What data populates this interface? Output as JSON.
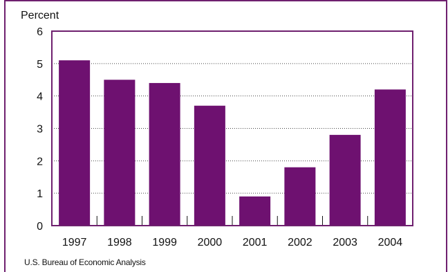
{
  "chart_data": {
    "type": "bar",
    "ylabel": "Percent",
    "categories": [
      "1997",
      "1998",
      "1999",
      "2000",
      "2001",
      "2002",
      "2003",
      "2004"
    ],
    "values": [
      5.1,
      4.5,
      4.4,
      3.7,
      0.9,
      1.8,
      2.8,
      4.2
    ],
    "ylim": [
      0,
      6
    ],
    "yticks": [
      0,
      1,
      2,
      3,
      4,
      5,
      6
    ],
    "grid": "horizontal dotted",
    "bar_color": "#6e1170"
  },
  "source": "U.S. Bureau of Economic Analysis"
}
